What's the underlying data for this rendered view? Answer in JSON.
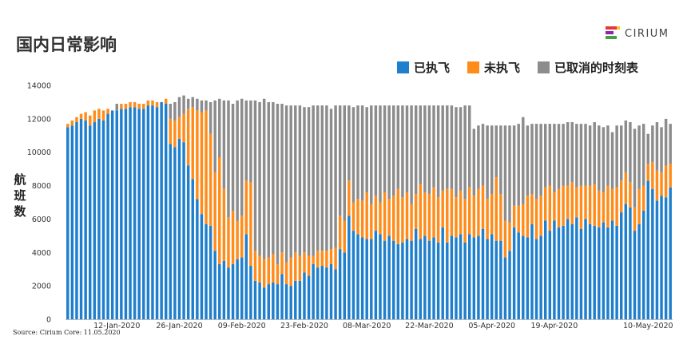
{
  "title": "国内日常影响",
  "logo": {
    "text": "CIRIUM"
  },
  "source": "Source: Cirium Core: 11.05.2020",
  "chart_data": {
    "type": "bar",
    "stacked": true,
    "ylabel": "航班数",
    "ylim": [
      0,
      14000
    ],
    "yticks": [
      0,
      2000,
      4000,
      6000,
      8000,
      10000,
      12000,
      14000
    ],
    "grid": false,
    "legend_position": "top-right",
    "x_tick_labels": [
      "12-Jan-2020",
      "26-Jan-2020",
      "09-Feb-2020",
      "23-Feb-2020",
      "08-Mar-2020",
      "22-Mar-2020",
      "05-Apr-2020",
      "19-Apr-2020",
      "10-May-2020"
    ],
    "series": [
      {
        "name": "已执飞",
        "color": "#1F7FCC"
      },
      {
        "name": "未执飞",
        "color": "#FF8C1A"
      },
      {
        "name": "已取消的时刻表",
        "color": "#8C8C8C"
      }
    ],
    "x_start": "2020-01-01",
    "x": [
      "2020-01-01",
      "2020-01-02",
      "2020-01-03",
      "2020-01-04",
      "2020-01-05",
      "2020-01-06",
      "2020-01-07",
      "2020-01-08",
      "2020-01-09",
      "2020-01-10",
      "2020-01-11",
      "2020-01-12",
      "2020-01-13",
      "2020-01-14",
      "2020-01-15",
      "2020-01-16",
      "2020-01-17",
      "2020-01-18",
      "2020-01-19",
      "2020-01-20",
      "2020-01-21",
      "2020-01-22",
      "2020-01-23",
      "2020-01-24",
      "2020-01-25",
      "2020-01-26",
      "2020-01-27",
      "2020-01-28",
      "2020-01-29",
      "2020-01-30",
      "2020-01-31",
      "2020-02-01",
      "2020-02-02",
      "2020-02-03",
      "2020-02-04",
      "2020-02-05",
      "2020-02-06",
      "2020-02-07",
      "2020-02-08",
      "2020-02-09",
      "2020-02-10",
      "2020-02-11",
      "2020-02-12",
      "2020-02-13",
      "2020-02-14",
      "2020-02-15",
      "2020-02-16",
      "2020-02-17",
      "2020-02-18",
      "2020-02-19",
      "2020-02-20",
      "2020-02-21",
      "2020-02-22",
      "2020-02-23",
      "2020-02-24",
      "2020-02-25",
      "2020-02-26",
      "2020-02-27",
      "2020-02-28",
      "2020-02-29",
      "2020-03-01",
      "2020-03-02",
      "2020-03-03",
      "2020-03-04",
      "2020-03-05",
      "2020-03-06",
      "2020-03-07",
      "2020-03-08",
      "2020-03-09",
      "2020-03-10",
      "2020-03-11",
      "2020-03-12",
      "2020-03-13",
      "2020-03-14",
      "2020-03-15",
      "2020-03-16",
      "2020-03-17",
      "2020-03-18",
      "2020-03-19",
      "2020-03-20",
      "2020-03-21",
      "2020-03-22",
      "2020-03-23",
      "2020-03-24",
      "2020-03-25",
      "2020-03-26",
      "2020-03-27",
      "2020-03-28",
      "2020-03-29",
      "2020-03-30",
      "2020-03-31",
      "2020-04-01",
      "2020-04-02",
      "2020-04-03",
      "2020-04-04",
      "2020-04-05",
      "2020-04-06",
      "2020-04-07",
      "2020-04-08",
      "2020-04-09",
      "2020-04-10",
      "2020-04-11",
      "2020-04-12",
      "2020-04-13",
      "2020-04-14",
      "2020-04-15",
      "2020-04-16",
      "2020-04-17",
      "2020-04-18",
      "2020-04-19",
      "2020-04-20",
      "2020-04-21",
      "2020-04-22",
      "2020-04-23",
      "2020-04-24",
      "2020-04-25",
      "2020-04-26",
      "2020-04-27",
      "2020-04-28",
      "2020-04-29",
      "2020-04-30",
      "2020-05-01",
      "2020-05-02",
      "2020-05-03",
      "2020-05-04",
      "2020-05-05",
      "2020-05-06",
      "2020-05-07",
      "2020-05-08",
      "2020-05-09",
      "2020-05-10",
      "2020-05-11",
      "2020-05-12",
      "2020-05-13"
    ],
    "flown": [
      11500,
      11600,
      11800,
      12000,
      11900,
      11600,
      11800,
      12000,
      11900,
      12300,
      12500,
      12500,
      12600,
      12600,
      12700,
      12700,
      12600,
      12600,
      12800,
      12800,
      12700,
      13000,
      12900,
      10500,
      10300,
      10800,
      10600,
      9200,
      8400,
      7200,
      6300,
      5700,
      5600,
      4100,
      3300,
      3500,
      3100,
      3300,
      3600,
      3700,
      5100,
      3200,
      2300,
      2200,
      1900,
      2100,
      2200,
      2100,
      2700,
      2100,
      2000,
      2300,
      2300,
      2800,
      2600,
      3300,
      3100,
      3200,
      3100,
      3300,
      3000,
      4200,
      4000,
      6200,
      5300,
      5100,
      4900,
      4800,
      4800,
      5300,
      5100,
      4700,
      5000,
      4700,
      4500,
      4600,
      4800,
      4700,
      5400,
      4800,
      5000,
      4700,
      4900,
      4600,
      5500,
      4600,
      5000,
      4900,
      5100,
      4600,
      5100,
      4900,
      5000,
      5400,
      4800,
      5100,
      4700,
      4700,
      3700,
      4100,
      5500,
      5200,
      5000,
      4900,
      5700,
      4800,
      5000,
      5900,
      5300,
      5900,
      5500,
      5600,
      6000,
      5700,
      6100,
      5400,
      6000,
      5700,
      5600,
      5500,
      5800,
      5500,
      5900,
      5600,
      6400,
      6900,
      6700,
      5300,
      5700,
      6500,
      8300,
      7800,
      7100,
      7400,
      7300,
      7900
    ],
    "not_flown": [
      200,
      300,
      300,
      300,
      500,
      600,
      700,
      600,
      600,
      300,
      0,
      0,
      300,
      300,
      300,
      300,
      300,
      300,
      300,
      300,
      300,
      0,
      300,
      1500,
      1600,
      1300,
      1700,
      3400,
      4300,
      5300,
      6100,
      6800,
      5500,
      4700,
      6400,
      4300,
      3000,
      3200,
      2300,
      2500,
      3200,
      5000,
      1800,
      1600,
      1700,
      1600,
      1700,
      1200,
      1300,
      1300,
      1700,
      1700,
      1500,
      1200,
      1200,
      500,
      1000,
      900,
      1000,
      900,
      1300,
      2000,
      1900,
      2100,
      1700,
      2100,
      2200,
      2800,
      2100,
      2100,
      1900,
      2900,
      2200,
      2700,
      3300,
      2700,
      2800,
      2200,
      2100,
      3300,
      2600,
      2800,
      3000,
      2700,
      2200,
      3200,
      2800,
      2400,
      2600,
      2600,
      2800,
      2500,
      2800,
      2600,
      2400,
      2400,
      3800,
      2800,
      2200,
      1700,
      1300,
      1600,
      1900,
      2500,
      1800,
      2400,
      2400,
      2000,
      2700,
      1700,
      2300,
      2400,
      2000,
      2500,
      1800,
      2600,
      2000,
      2300,
      2500,
      2200,
      1800,
      2500,
      1900,
      2300,
      1900,
      1900,
      1500,
      1400,
      2100,
      1500,
      1000,
      1600,
      1800,
      1400,
      1900,
      1400
    ],
    "cancelled": [
      0,
      0,
      0,
      0,
      0,
      0,
      0,
      0,
      0,
      0,
      0,
      400,
      0,
      0,
      0,
      0,
      0,
      0,
      0,
      0,
      0,
      0,
      0,
      900,
      1100,
      1200,
      1100,
      600,
      600,
      700,
      700,
      600,
      1900,
      4300,
      3500,
      5300,
      7000,
      6400,
      7200,
      7000,
      4800,
      4900,
      9000,
      9200,
      9600,
      9300,
      9100,
      9600,
      8900,
      9400,
      9100,
      8800,
      9000,
      8700,
      8900,
      9000,
      8700,
      8700,
      8700,
      8400,
      8500,
      6600,
      6900,
      4500,
      5700,
      5600,
      5700,
      5100,
      5900,
      5400,
      5800,
      5200,
      5600,
      5400,
      5000,
      5500,
      5200,
      5900,
      5300,
      4700,
      5200,
      5300,
      4900,
      5500,
      5100,
      5000,
      5000,
      5400,
      5000,
      5600,
      4900,
      4000,
      3800,
      3700,
      4400,
      4100,
      3100,
      4100,
      5700,
      5800,
      4800,
      4900,
      5200,
      4200,
      4200,
      4500,
      4300,
      3800,
      3700,
      4100,
      3900,
      3700,
      3800,
      3600,
      3800,
      3700,
      3700,
      3600,
      3700,
      3900,
      3900,
      3600,
      3400,
      3700,
      3300,
      3100,
      3600,
      4700,
      3800,
      3700,
      1800,
      2200,
      2900,
      2700,
      2800,
      2400
    ]
  }
}
